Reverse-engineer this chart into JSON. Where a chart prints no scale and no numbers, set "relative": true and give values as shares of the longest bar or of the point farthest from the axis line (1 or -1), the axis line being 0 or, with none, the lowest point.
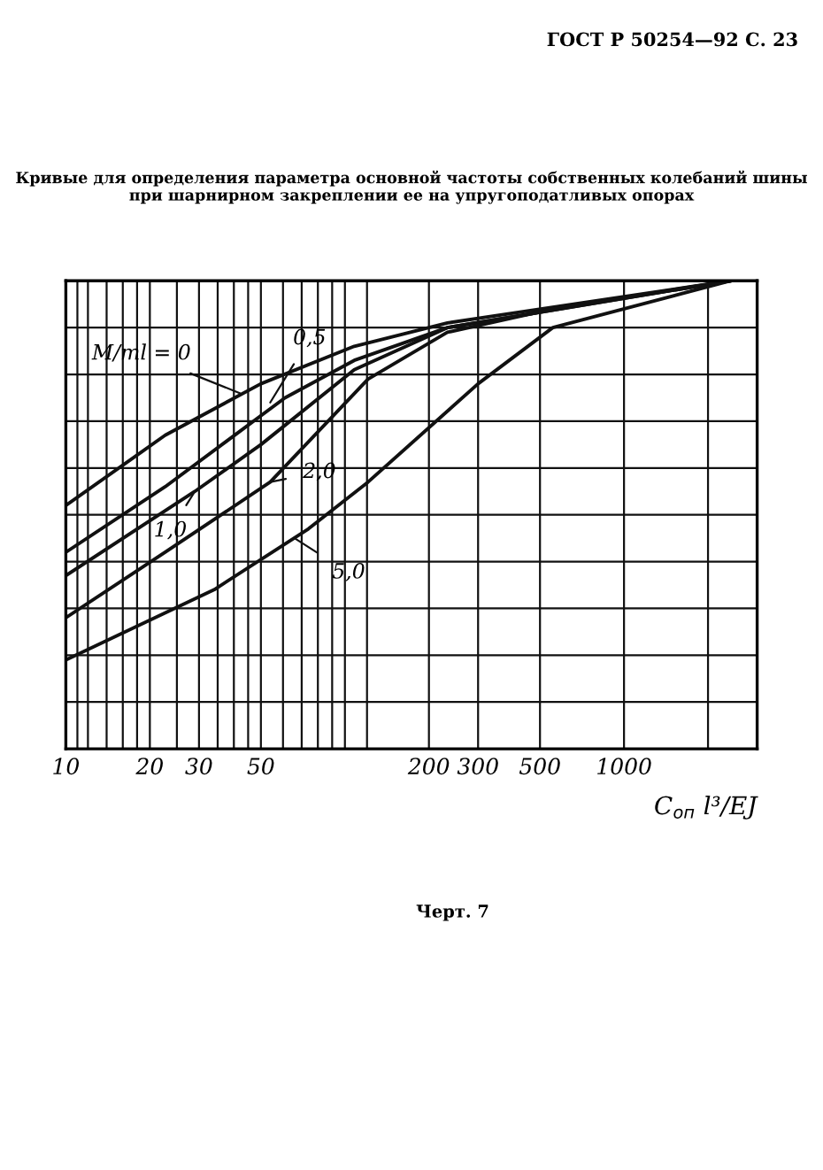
{
  "chart_data": {
    "type": "line",
    "relative": true,
    "title": "Кривые для определения параметра основной частоты собственных колебаний шины\nпри шарнирном закреплении ее на упругоподатливых опорах",
    "xlabel": "C$_{оп}$ l³/EJ",
    "log": "x",
    "xlim": [
      10,
      3000
    ],
    "xticks": [
      {
        "value": 10,
        "label": "10"
      },
      {
        "value": 11,
        "label": null
      },
      {
        "value": 12,
        "label": null
      },
      {
        "value": 14,
        "label": null
      },
      {
        "value": 16,
        "label": null
      },
      {
        "value": 18,
        "label": null
      },
      20,
      {
        "value": 25,
        "label": null
      },
      30,
      {
        "value": 35,
        "label": null
      },
      {
        "value": 40,
        "label": null
      },
      {
        "value": 45,
        "label": null
      },
      50,
      {
        "value": 60,
        "label": null
      },
      {
        "value": 70,
        "label": null
      },
      {
        "value": 80,
        "label": null
      },
      {
        "value": 90,
        "label": null
      },
      {
        "value": 100,
        "label": null
      },
      {
        "value": 120,
        "label": null
      },
      200,
      300,
      500,
      1000,
      {
        "value": 2000,
        "label": null
      }
    ],
    "tick_labels": "x",
    "grid": true,
    "line_style": "solid",
    "series": [
      {
        "color": "#111111",
        "x": [
          2400,
          233,
          108,
          50,
          22.7,
          10
        ],
        "values": [
          1,
          0.91,
          0.86,
          0.78,
          0.67,
          0.52
        ]
      },
      {
        "color": "#111111",
        "x": [
          2400,
          233,
          108,
          61,
          22.7,
          10
        ],
        "values": [
          1,
          0.9,
          0.83,
          0.75,
          0.56,
          0.42
        ]
      },
      {
        "color": "#111111",
        "x": [
          2400,
          233,
          108,
          50,
          29,
          10
        ],
        "values": [
          1,
          0.9,
          0.81,
          0.65,
          0.55,
          0.37
        ]
      },
      {
        "color": "#111111",
        "x": [
          2400,
          556,
          233,
          121,
          54,
          22.7,
          10
        ],
        "values": [
          1,
          0.94,
          0.89,
          0.79,
          0.57,
          0.42,
          0.28
        ]
      },
      {
        "color": "#111111",
        "x": [
          2400,
          556,
          300,
          121,
          74,
          34,
          10
        ],
        "values": [
          1,
          0.9,
          0.78,
          0.57,
          0.47,
          0.34,
          0.19
        ]
      }
    ],
    "annotations": [
      "ГОСТ Р 50254—92 С. 23",
      "Черт. 7",
      {
        "text": "M/ml = 0",
        "x": 42,
        "y": 0.76
      },
      {
        "text": "0,5",
        "x": 54,
        "y": 0.74
      },
      {
        "text": "1,0",
        "x": 29,
        "y": 0.55
      },
      {
        "text": "2,0",
        "x": 54,
        "y": 0.57
      },
      {
        "text": "5,0",
        "x": 66,
        "y": 0.45
      }
    ]
  }
}
